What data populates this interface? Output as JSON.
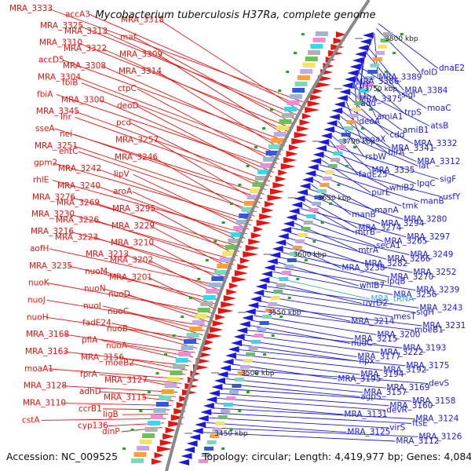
{
  "title": "Mycobacterium tuberculosis H37Ra, complete genome",
  "footer": {
    "accession": "Accession: NC_009525",
    "summary": "Topology: circular; Length: 4,419,977 bp; Genes: 4,084"
  },
  "ticks": [
    "3800 kbp",
    "3750 kbp",
    "3700 kbp",
    "3650 kbp",
    "3600 kbp",
    "3550 kbp",
    "3500 kbp",
    "3450 kbp"
  ],
  "colors": {
    "forward": "#e8140f",
    "reverse": "#1a1adf",
    "rna": "#3fa7e0",
    "backbone": "#8a8a8a"
  },
  "left_labels": [
    "MRA_3333",
    "accA3",
    "MRA_3318",
    "MRA_3325",
    "MRA_3313",
    "maf",
    "MRA_3310",
    "MRA_3322",
    "MRA_3309",
    "accD5",
    "MRA_3308",
    "MRA_3314",
    "MRA_3304",
    "fbiB",
    "ctpC",
    "fbiA",
    "MRA_3300",
    "deoD",
    "MRA_3345",
    "lhr",
    "pcd",
    "sseA",
    "nei",
    "MRA_3257",
    "MRA_3251",
    "entC",
    "MRA_3246",
    "gpm2",
    "MRA_3242",
    "lipV",
    "rhlE",
    "MRA_3240",
    "aroA",
    "MRA_3276",
    "MRA_3269",
    "MRA_3295",
    "MRA_3230",
    "MRA_3226",
    "MRA_3229",
    "MRA_3216",
    "MRA_3223",
    "MRA_3210",
    "aofH",
    "MRA_3213",
    "MRA_3202",
    "MRA_3235",
    "nuoM",
    "MRA_3201",
    "nuoK",
    "nuoN",
    "nuoD",
    "nuoJ",
    "nuoI",
    "nuoC",
    "nuoH",
    "fadE24",
    "nuoB",
    "MRA_3168",
    "pflA",
    "nuoA",
    "MRA_3163",
    "MRA_3156",
    "moeB2",
    "moaA1",
    "fprA",
    "MRA_3127",
    "MRA_3128",
    "adhD",
    "MRA_3115",
    "MRA_3110",
    "ccrB1",
    "ligB",
    "cstA",
    "cyp136",
    "dinP"
  ],
  "right_labels": [
    "dnaE2",
    "folD",
    "MRA_3389",
    "MRA_3386",
    "icd1",
    "MRA_3384",
    "sigI",
    "MRA_3375",
    "add",
    "moaC",
    "trpS",
    "amiA1",
    "deoA",
    "atsB",
    "amiB1",
    "cdd",
    "moaX",
    "MRA_3332",
    "MRA_3341",
    "birA",
    "rsbW",
    "MRA_3312",
    "lat",
    "MRA_3335",
    "fadE25",
    "sigF",
    "lpqC",
    "whiB2",
    "purE",
    "usfY",
    "manB",
    "tmk",
    "manA",
    "manB",
    "MRA_3280",
    "MRA_3294",
    "MRA_3274",
    "mtrB",
    "MRA_3297",
    "MRA_3265",
    "secA1",
    "mtrA",
    "MRA_3249",
    "MRA_3266",
    "MRA_3282",
    "MRA_3238",
    "MRA_3252",
    "MRA_3270",
    "lpqB",
    "whiB7",
    "MRA_3239",
    "MRA_3256",
    "MRA_tRNA",
    "uvrD2",
    "MRA_3243",
    "sigH",
    "mesT",
    "MRA_3214",
    "MRA_3231",
    "moeB1",
    "MRA_3200",
    "MRA_3215",
    "nudC",
    "MRA_3193",
    "MRA_3222",
    "MRA_3177",
    "hpx",
    "MRA_3175",
    "MRA_3192",
    "MRA_3194",
    "MRA_3195",
    "devS",
    "MRA_3169",
    "MRA_3157",
    "agpS",
    "MRA_3158",
    "MRA_3160",
    "devR",
    "MRA_3131",
    "MRA_3124",
    "ftsE",
    "virS",
    "MRA_3125",
    "MRA_3126",
    "MRA_3112"
  ]
}
